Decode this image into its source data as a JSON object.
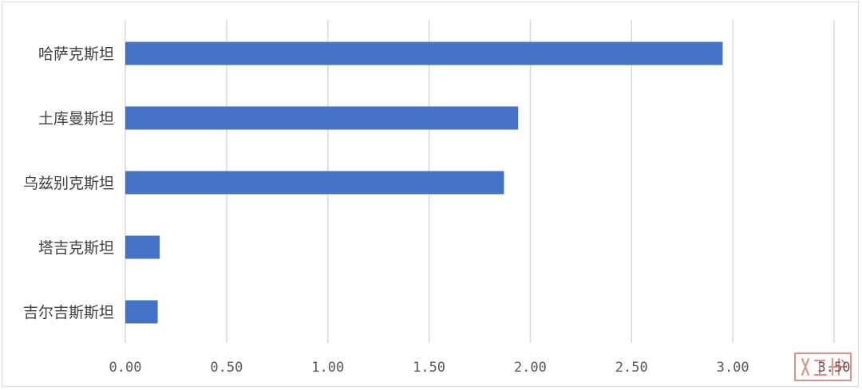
{
  "chart_data": {
    "type": "bar",
    "orientation": "horizontal",
    "categories": [
      "哈萨克斯坦",
      "土库曼斯坦",
      "乌兹别克斯坦",
      "塔吉克斯坦",
      "吉尔吉斯斯坦"
    ],
    "values": [
      2.95,
      1.94,
      1.87,
      0.17,
      0.16
    ],
    "xlim": [
      0,
      3.5
    ],
    "xticks": [
      "0.00",
      "0.50",
      "1.00",
      "1.50",
      "2.00",
      "2.50",
      "3.00",
      "3.50"
    ],
    "grid": true,
    "legend": "none",
    "bar_color": "#4472c4",
    "grid_color": "#d9d9d9"
  },
  "watermark": {
    "color": "#c0392b"
  }
}
